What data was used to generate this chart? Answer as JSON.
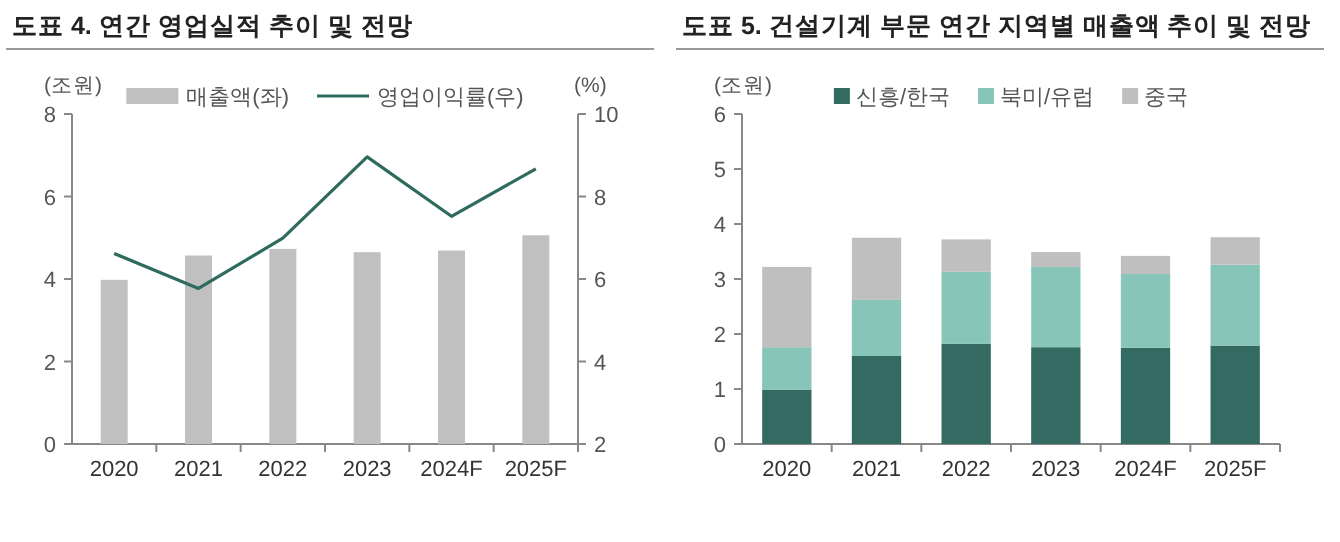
{
  "chart_data": [
    {
      "type": "bar",
      "title": "도표 4. 연간 영업실적 추이 및 전망",
      "ylabel": "(조원)",
      "y2label": "(%)",
      "categories": [
        "2020",
        "2021",
        "2022",
        "2023",
        "2024F",
        "2025F"
      ],
      "series": [
        {
          "name": "매출액(좌)",
          "color": "#c0c0c0",
          "values": [
            3.98,
            4.57,
            4.73,
            4.65,
            4.69,
            5.06
          ]
        },
        {
          "name": "영업이익률(우)",
          "type": "line",
          "axis": "y2",
          "color": "#2e6b5e",
          "values": [
            6.62,
            5.77,
            6.99,
            8.96,
            7.52,
            8.67
          ]
        }
      ],
      "ylim": [
        0,
        8
      ],
      "yticks": [
        0,
        2,
        4,
        6,
        8
      ],
      "y2lim": [
        2,
        10
      ],
      "y2ticks": [
        2,
        4,
        6,
        8,
        10
      ],
      "legend": "top",
      "grid": false,
      "marker": "none"
    },
    {
      "type": "bar",
      "title": "도표 5. 건설기계 부문 연간 지역별 매출액 추이 및 전망",
      "ylabel": "(조원)",
      "categories": [
        "2020",
        "2021",
        "2022",
        "2023",
        "2024F",
        "2025F"
      ],
      "stacked": true,
      "series": [
        {
          "name": "신흥/한국",
          "color": "#336b62",
          "values": [
            0.99,
            1.6,
            1.82,
            1.76,
            1.75,
            1.79
          ]
        },
        {
          "name": "북미/유럽",
          "color": "#86c5b8",
          "values": [
            0.77,
            1.02,
            1.31,
            1.46,
            1.34,
            1.47
          ]
        },
        {
          "name": "중국",
          "color": "#bfbfbf",
          "values": [
            1.46,
            1.13,
            0.59,
            0.27,
            0.33,
            0.5
          ]
        }
      ],
      "ylim": [
        0,
        6
      ],
      "yticks": [
        0,
        1,
        2,
        3,
        4,
        5,
        6
      ],
      "legend": "top",
      "grid": false
    }
  ]
}
